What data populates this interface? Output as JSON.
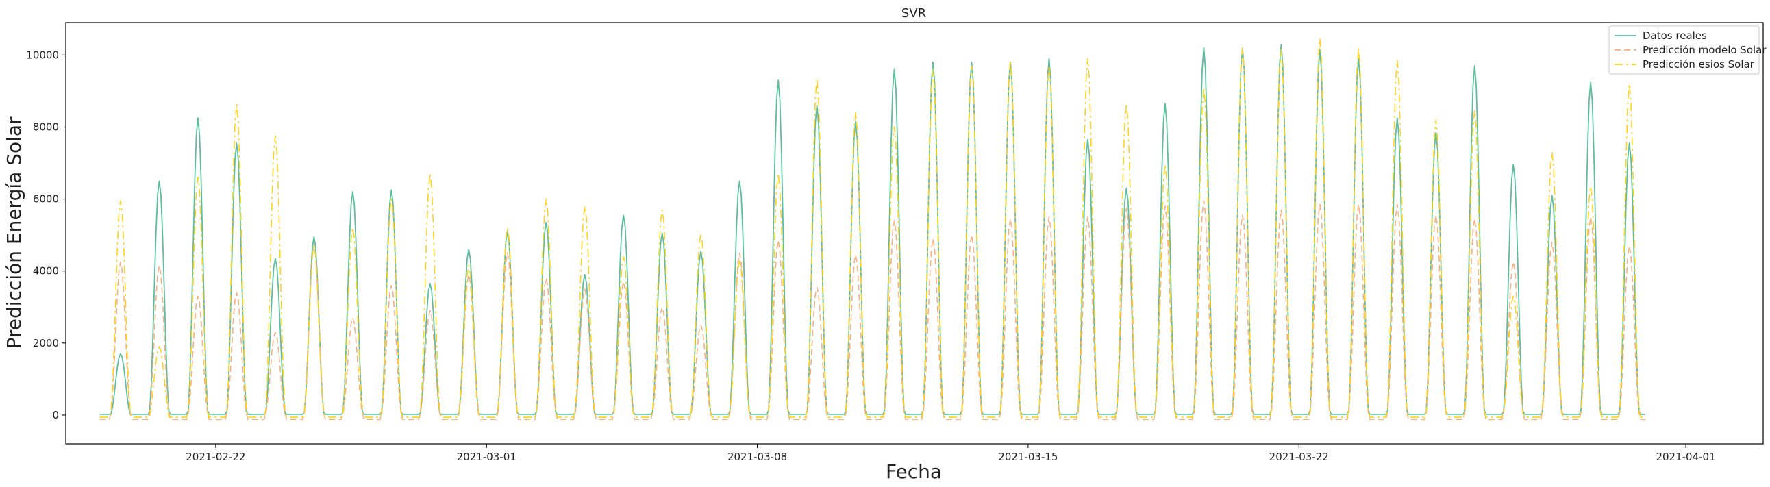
{
  "chart_data": {
    "type": "line",
    "title": "SVR",
    "xlabel": "Fecha",
    "ylabel": "Predicción Energía Solar",
    "xlim": [
      "2021-02-18T03:00",
      "2021-04-03T00:00"
    ],
    "ylim": [
      -800,
      10900
    ],
    "y_ticks": [
      0,
      2000,
      4000,
      6000,
      8000,
      10000
    ],
    "x_ticks": [
      "2021-02-22",
      "2021-03-01",
      "2021-03-08",
      "2021-03-15",
      "2021-03-22",
      "2021-04-01"
    ],
    "legend_position": "top-right",
    "grid": false,
    "start_date": "2021-02-19",
    "series": [
      {
        "name": "Datos reales",
        "style": "solid",
        "color": "#5dbfa0",
        "daily_peaks": [
          1700,
          6500,
          8250,
          7550,
          4350,
          4950,
          6200,
          6250,
          3650,
          4600,
          5100,
          5350,
          3900,
          5550,
          5050,
          4550,
          6500,
          9300,
          8600,
          8150,
          9600,
          9800,
          9800,
          9800,
          9900,
          7650,
          6300,
          8650,
          10200,
          10200,
          10300,
          10150,
          9900,
          8250,
          7850,
          9700,
          6950,
          6100,
          9250,
          7550
        ]
      },
      {
        "name": "Predicción modelo Solar",
        "style": "dashed",
        "color": "#f4b183",
        "daily_peaks": [
          4250,
          4150,
          3300,
          3400,
          2300,
          4700,
          2700,
          3600,
          2900,
          3900,
          4500,
          3800,
          3500,
          3700,
          3000,
          2500,
          4500,
          4850,
          3550,
          4450,
          5400,
          4900,
          5000,
          5450,
          5500,
          5500,
          5750,
          5800,
          5950,
          5550,
          5700,
          5850,
          5850,
          5850,
          5550,
          5450,
          4250,
          4800,
          5500,
          4700
        ]
      },
      {
        "name": "Predicción esios Solar",
        "style": "dashdot",
        "color": "#ffd21f",
        "daily_peaks": [
          5950,
          1900,
          6600,
          8650,
          7750,
          4700,
          5200,
          6000,
          6700,
          4150,
          5200,
          6000,
          5800,
          4400,
          5700,
          5050,
          4300,
          6700,
          9350,
          8400,
          8000,
          9600,
          9700,
          9850,
          9700,
          9900,
          8650,
          6950,
          9100,
          10200,
          10150,
          10450,
          10200,
          9850,
          8200,
          8450,
          3300,
          7300,
          6350,
          9200
        ]
      }
    ]
  }
}
